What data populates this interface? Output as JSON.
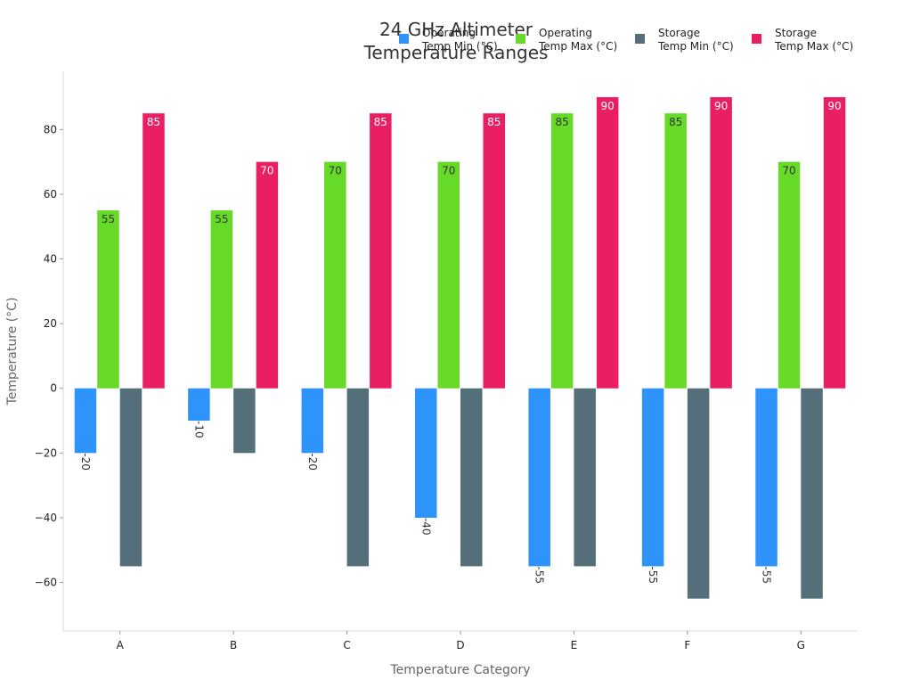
{
  "chart_data": {
    "type": "bar",
    "title_lines": [
      "24 GHz Altimeter",
      "Temperature Ranges"
    ],
    "xlabel": "Temperature Category",
    "ylabel": "Temperature (°C)",
    "categories": [
      "A",
      "B",
      "C",
      "D",
      "E",
      "F",
      "G"
    ],
    "ylim": [
      -75,
      98
    ],
    "yticks": [
      80,
      60,
      40,
      20,
      0,
      -20,
      -40,
      -60
    ],
    "ytick_labels": [
      "80",
      "60",
      "40",
      "20",
      "0",
      "−20",
      "−40",
      "−60"
    ],
    "grid": false,
    "legend_position": "top-right",
    "series": [
      {
        "name_lines": [
          "Operating",
          "Temp Min (°C)"
        ],
        "color": "#2E93FA",
        "label_color": "#333333",
        "values": [
          -20,
          -10,
          -20,
          -40,
          -55,
          -55,
          -55
        ]
      },
      {
        "name_lines": [
          "Operating",
          "Temp Max (°C)"
        ],
        "color": "#66DA26",
        "label_color": "#333333",
        "values": [
          55,
          55,
          70,
          70,
          85,
          85,
          70
        ]
      },
      {
        "name_lines": [
          "Storage",
          "Temp Min (°C)"
        ],
        "color": "#546E7A",
        "label_color": "#ffffff",
        "values": [
          -55,
          -20,
          -55,
          -55,
          -55,
          -65,
          -65
        ]
      },
      {
        "name_lines": [
          "Storage",
          "Temp Max (°C)"
        ],
        "color": "#E91E63",
        "label_color": "#ffffff",
        "values": [
          85,
          70,
          85,
          85,
          90,
          90,
          90
        ]
      }
    ]
  }
}
